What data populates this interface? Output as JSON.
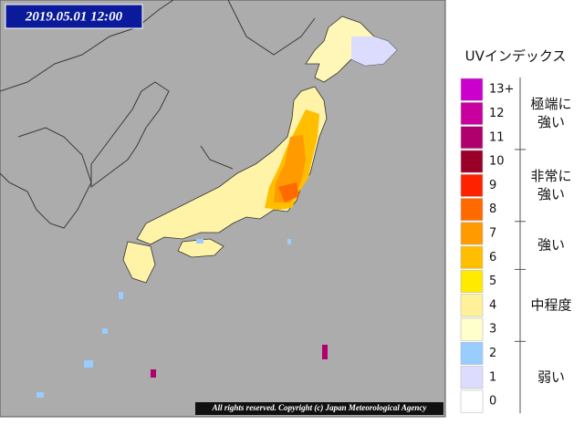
{
  "map": {
    "timestamp": "2019.05.01 12:00",
    "copyright": "All rights reserved. Copyright (c) Japan Meteorological Agency"
  },
  "legend": {
    "title": "UVインデックス",
    "levels": [
      {
        "value": 13,
        "label": "13+",
        "color": "#cc00cc"
      },
      {
        "value": 12,
        "color": "#c8009e"
      },
      {
        "value": 11,
        "color": "#b0006e"
      },
      {
        "value": 10,
        "color": "#9a0028"
      },
      {
        "value": 9,
        "color": "#ff2200"
      },
      {
        "value": 8,
        "color": "#ff6a00"
      },
      {
        "value": 7,
        "color": "#ff9a00"
      },
      {
        "value": 6,
        "color": "#ffbe00"
      },
      {
        "value": 5,
        "color": "#ffea00"
      },
      {
        "value": 4,
        "color": "#fff09a"
      },
      {
        "value": 3,
        "color": "#ffffcc"
      },
      {
        "value": 2,
        "color": "#99ccff"
      },
      {
        "value": 1,
        "color": "#dcdcff"
      },
      {
        "value": 0,
        "color": "#ffffff"
      }
    ],
    "categories": [
      {
        "lines": [
          "極端に",
          "強い"
        ]
      },
      {
        "lines": [
          "非常に",
          "強い"
        ]
      },
      {
        "lines": [
          "強い"
        ]
      },
      {
        "lines": [
          "中程度"
        ]
      },
      {
        "lines": [
          "弱い"
        ]
      }
    ]
  }
}
